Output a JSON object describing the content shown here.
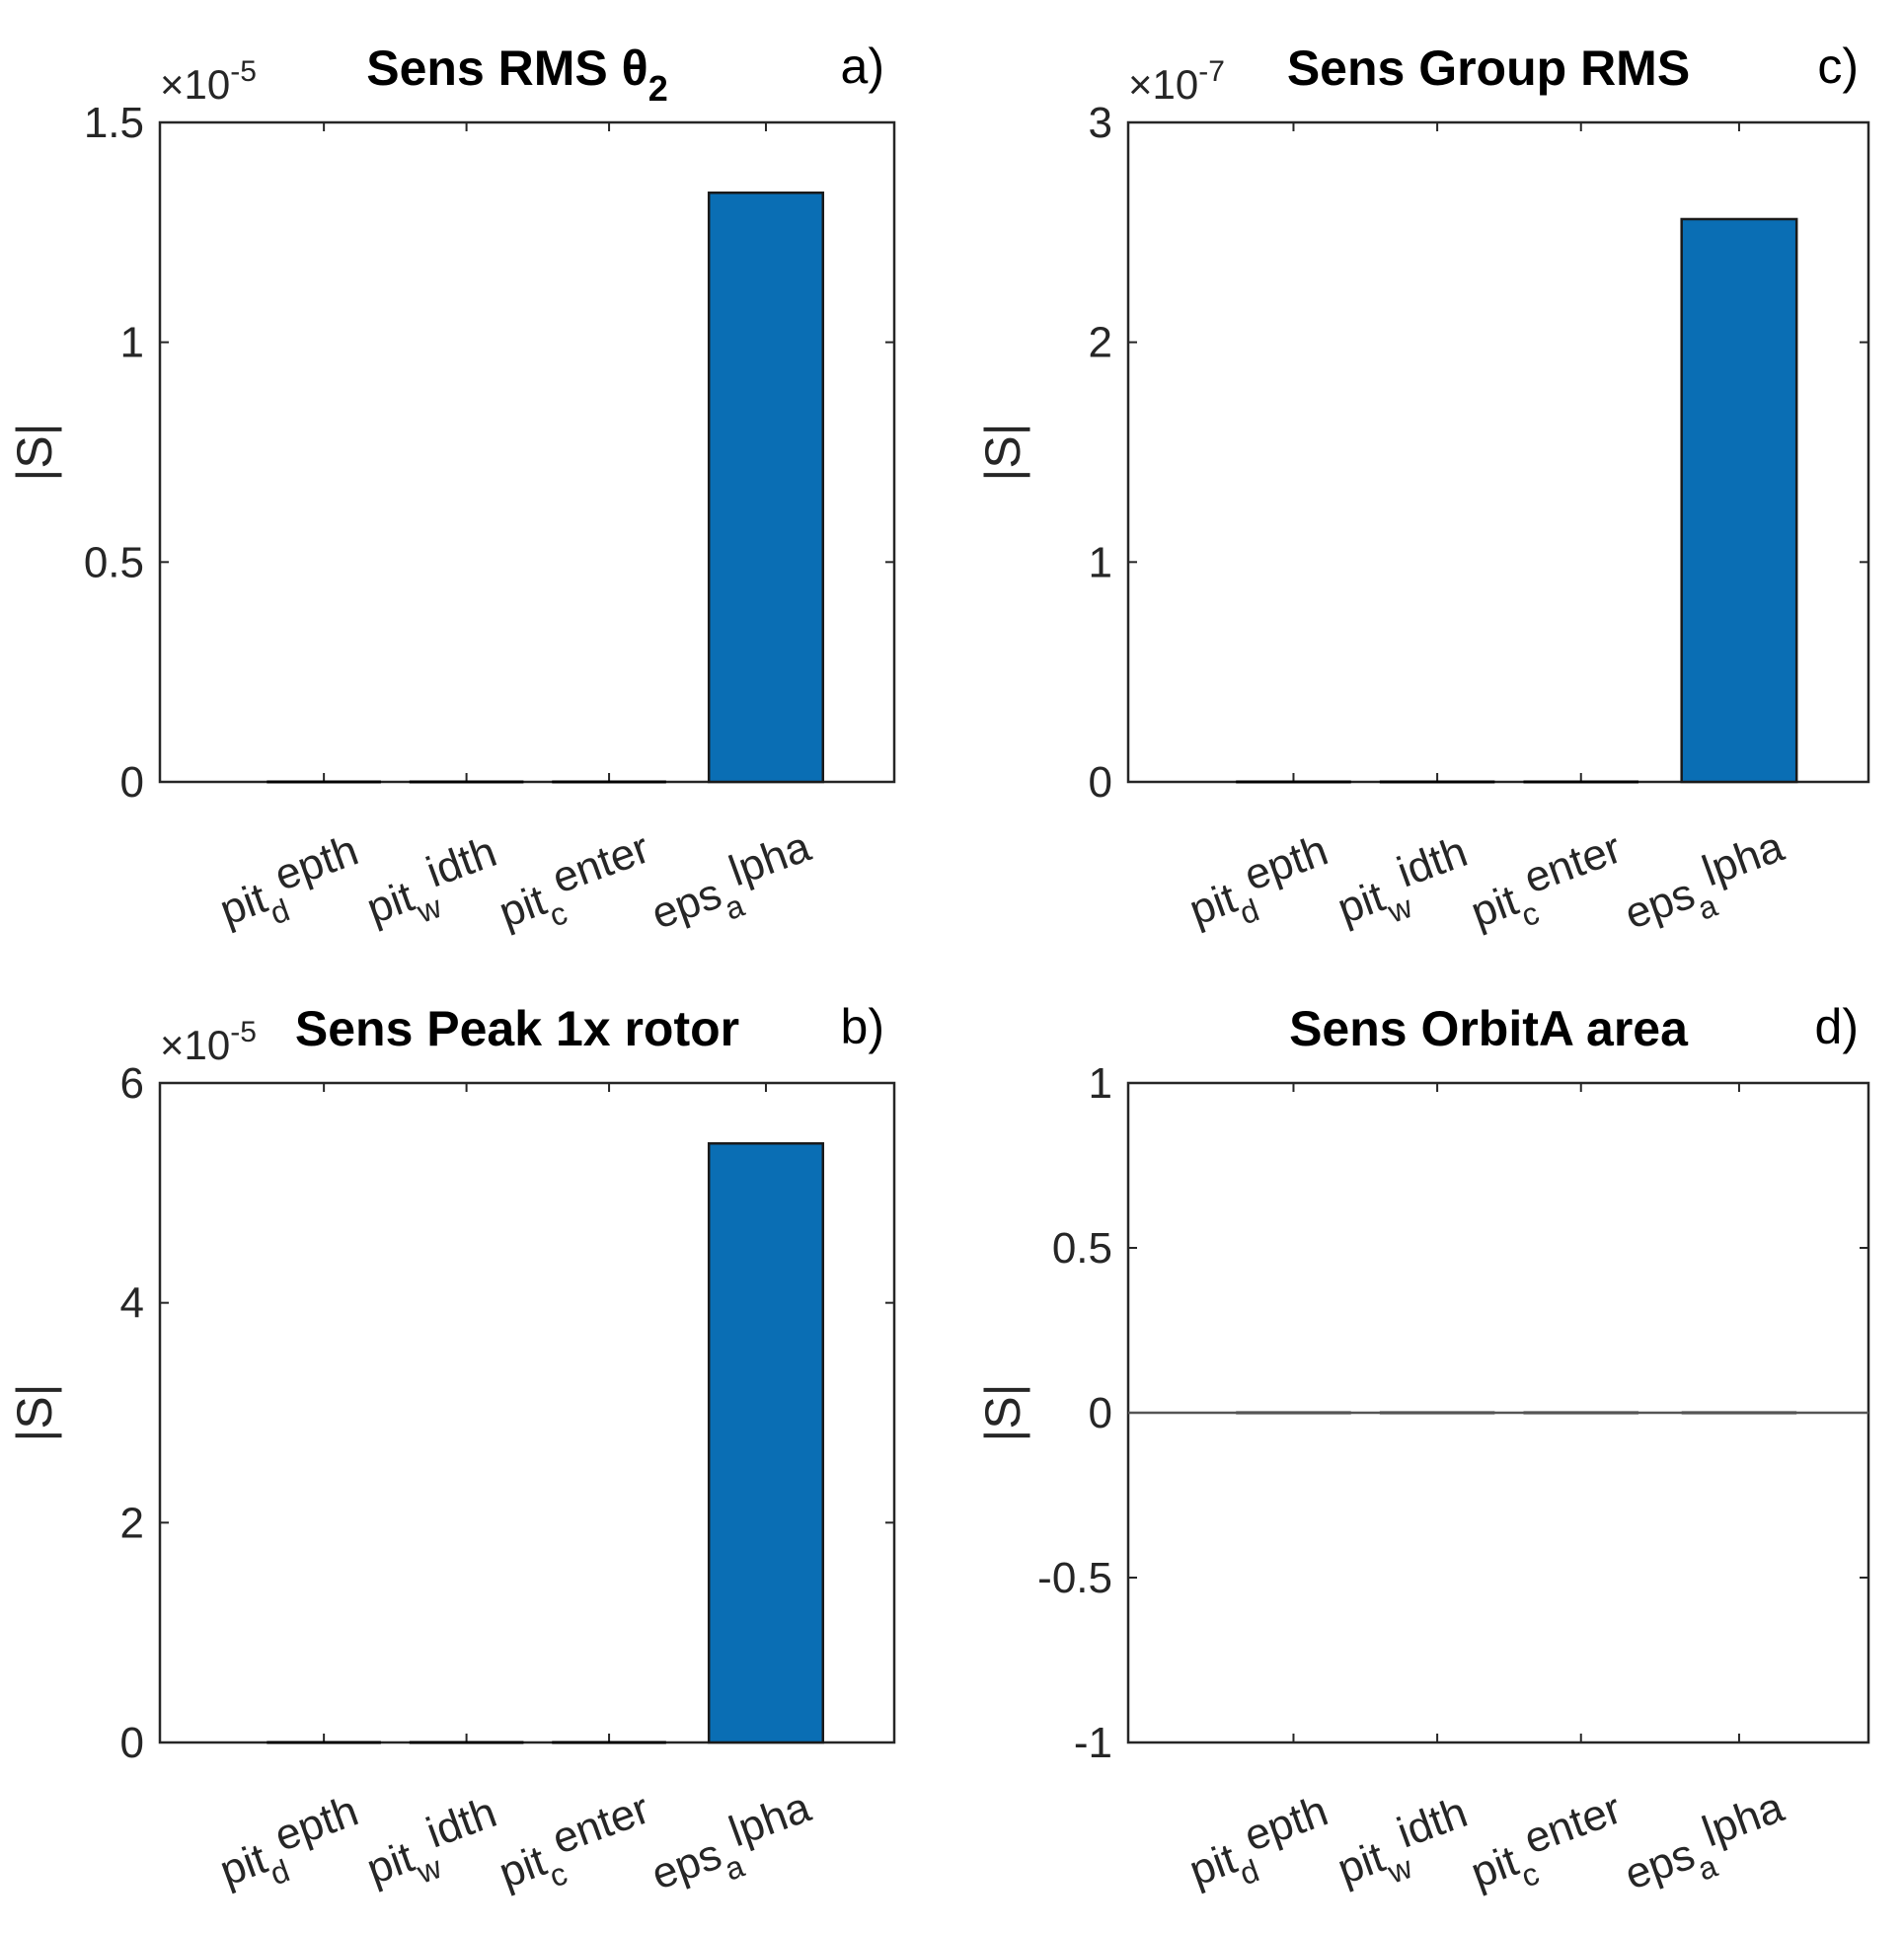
{
  "chart_data": [
    {
      "id": "a",
      "type": "bar",
      "title": "Sens RMS θ",
      "title_subscript": "2",
      "panel_label": "a)",
      "ylabel": "|S|",
      "exponent_base": "×10",
      "exponent_power": "-5",
      "categories": [
        "pit_depth",
        "pit_width",
        "pit_center",
        "eps_alpha"
      ],
      "category_parts": [
        {
          "base": "pit",
          "sub": "d",
          "rest": "epth"
        },
        {
          "base": "pit",
          "sub": "w",
          "rest": "idth"
        },
        {
          "base": "pit",
          "sub": "c",
          "rest": "enter"
        },
        {
          "base": "eps",
          "sub": "a",
          "rest": "lpha"
        }
      ],
      "values": [
        0,
        0,
        0,
        1.34
      ],
      "ylim": [
        0,
        1.5
      ],
      "yticks": [
        0,
        0.5,
        1,
        1.5
      ],
      "ytick_labels": [
        "0",
        "0.5",
        "1",
        "1.5"
      ]
    },
    {
      "id": "b",
      "type": "bar",
      "title": "Sens Peak 1x rotor",
      "panel_label": "b)",
      "ylabel": "|S|",
      "exponent_base": "×10",
      "exponent_power": "-5",
      "categories": [
        "pit_depth",
        "pit_width",
        "pit_center",
        "eps_alpha"
      ],
      "category_parts": [
        {
          "base": "pit",
          "sub": "d",
          "rest": "epth"
        },
        {
          "base": "pit",
          "sub": "w",
          "rest": "idth"
        },
        {
          "base": "pit",
          "sub": "c",
          "rest": "enter"
        },
        {
          "base": "eps",
          "sub": "a",
          "rest": "lpha"
        }
      ],
      "values": [
        0,
        0,
        0,
        5.45
      ],
      "ylim": [
        0,
        6
      ],
      "yticks": [
        0,
        2,
        4,
        6
      ],
      "ytick_labels": [
        "0",
        "2",
        "4",
        "6"
      ]
    },
    {
      "id": "c",
      "type": "bar",
      "title": "Sens Group RMS",
      "panel_label": "c)",
      "ylabel": "|S|",
      "exponent_base": "×10",
      "exponent_power": "-7",
      "categories": [
        "pit_depth",
        "pit_width",
        "pit_center",
        "eps_alpha"
      ],
      "category_parts": [
        {
          "base": "pit",
          "sub": "d",
          "rest": "epth"
        },
        {
          "base": "pit",
          "sub": "w",
          "rest": "idth"
        },
        {
          "base": "pit",
          "sub": "c",
          "rest": "enter"
        },
        {
          "base": "eps",
          "sub": "a",
          "rest": "lpha"
        }
      ],
      "values": [
        0,
        0,
        0,
        2.56
      ],
      "ylim": [
        0,
        3
      ],
      "yticks": [
        0,
        1,
        2,
        3
      ],
      "ytick_labels": [
        "0",
        "1",
        "2",
        "3"
      ]
    },
    {
      "id": "d",
      "type": "bar",
      "title": "Sens OrbitA area",
      "panel_label": "d)",
      "ylabel": "|S|",
      "exponent_base": "",
      "exponent_power": "",
      "categories": [
        "pit_depth",
        "pit_width",
        "pit_center",
        "eps_alpha"
      ],
      "category_parts": [
        {
          "base": "pit",
          "sub": "d",
          "rest": "epth"
        },
        {
          "base": "pit",
          "sub": "w",
          "rest": "idth"
        },
        {
          "base": "pit",
          "sub": "c",
          "rest": "enter"
        },
        {
          "base": "eps",
          "sub": "a",
          "rest": "lpha"
        }
      ],
      "values": [
        0,
        0,
        0,
        0
      ],
      "ylim": [
        -1,
        1
      ],
      "yticks": [
        -1,
        -0.5,
        0,
        0.5,
        1
      ],
      "ytick_labels": [
        "-1",
        "-0.5",
        "0",
        "0.5",
        "1"
      ]
    }
  ],
  "colors": {
    "bar_fill": "#0a6eb4",
    "bar_edge": "#1a1a1a",
    "axis": "#262626"
  }
}
